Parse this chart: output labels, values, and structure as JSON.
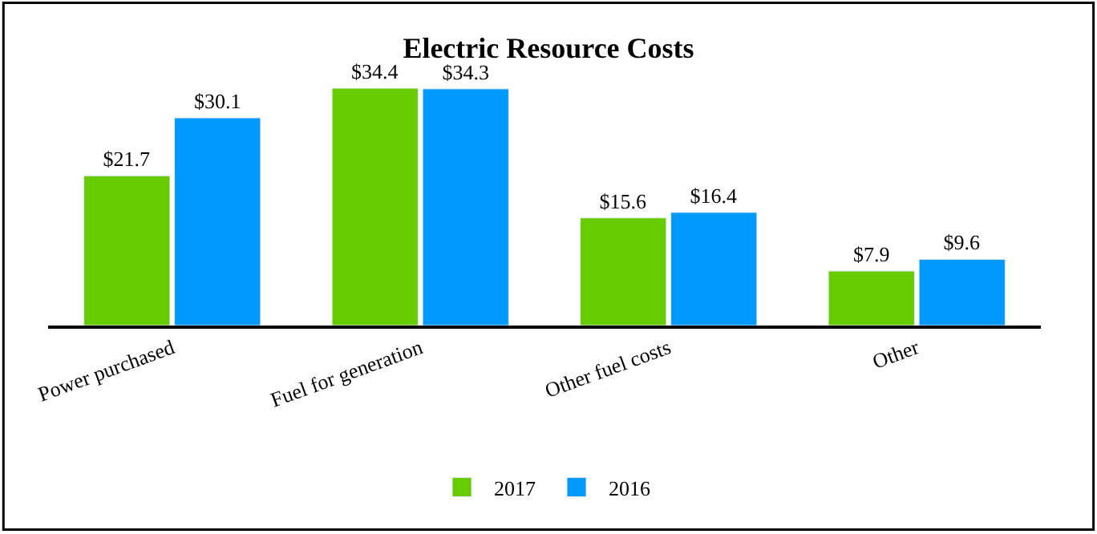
{
  "chart_data": {
    "type": "bar",
    "title": "Electric Resource Costs",
    "categories": [
      "Power purchased",
      "Fuel for generation",
      "Other fuel costs",
      "Other"
    ],
    "series": [
      {
        "name": "2017",
        "color": "#66cc00",
        "values": [
          21.7,
          34.4,
          15.6,
          7.9
        ],
        "value_labels": [
          "$21.7",
          "$34.4",
          "$15.6",
          "$7.9"
        ]
      },
      {
        "name": "2016",
        "color": "#0099ff",
        "values": [
          30.1,
          34.3,
          16.4,
          9.6
        ],
        "value_labels": [
          "$30.1",
          "$34.3",
          "$16.4",
          "$9.6"
        ]
      }
    ],
    "legend": "bottom"
  }
}
